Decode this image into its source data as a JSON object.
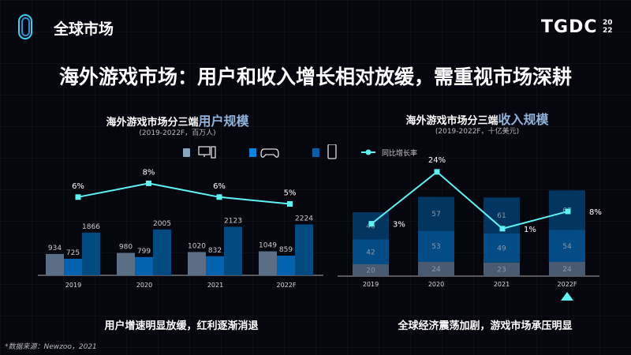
{
  "header": {
    "brand": "全球市场",
    "logo_text": "TGDC",
    "logo_year_top": "20",
    "logo_year_bottom": "22"
  },
  "title": "海外游戏市场：用户和收入增长相对放缓，需重视市场深耕",
  "legend": {
    "items": [
      {
        "icon": "pc-icon",
        "color": "#8aa5c0"
      },
      {
        "icon": "gamepad-icon",
        "color": "#0a84e0"
      },
      {
        "icon": "mobile-icon",
        "color": "#0b5fa6"
      }
    ],
    "line_label": "同比增长率",
    "line_color": "#5ef2f2"
  },
  "chart_data": [
    {
      "type": "bar",
      "title_prefix": "海外游戏市场分三端",
      "title_highlight": "用户规模",
      "subtitle": "(2019-2022F，百万人)",
      "categories": [
        "2019",
        "2020",
        "2021",
        "2022F"
      ],
      "series": [
        {
          "name": "PC",
          "values": [
            934,
            980,
            1020,
            1049
          ],
          "color": "#5a6e86"
        },
        {
          "name": "Console",
          "values": [
            725,
            799,
            832,
            859
          ],
          "color": "#0562ae"
        },
        {
          "name": "Mobile",
          "values": [
            1866,
            2005,
            2123,
            2224
          ],
          "color": "#024a80"
        }
      ],
      "growth": {
        "name": "同比增长率",
        "values": [
          6,
          8,
          6,
          5
        ],
        "labels": [
          "6%",
          "8%",
          "6%",
          "5%"
        ]
      },
      "conclusion": "用户增速明显放缓，红利逐渐消退"
    },
    {
      "type": "bar",
      "stacked": true,
      "title_prefix": "海外游戏市场分三端",
      "title_highlight": "收入规模",
      "subtitle": "(2019-2022F，十亿美元)",
      "categories": [
        "2019",
        "2020",
        "2021",
        "2022F"
      ],
      "series": [
        {
          "name": "PC",
          "values": [
            20,
            24,
            23,
            24
          ],
          "color": "#4a5a70"
        },
        {
          "name": "Console",
          "values": [
            42,
            53,
            49,
            54
          ],
          "color": "#034c86"
        },
        {
          "name": "Mobile",
          "values": [
            46,
            57,
            61,
            67
          ],
          "color": "#02355f"
        }
      ],
      "growth": {
        "name": "同比增长率",
        "values": [
          3,
          24,
          1,
          8
        ],
        "labels": [
          "3%",
          "24%",
          "1%",
          "8%"
        ]
      },
      "conclusion": "全球经济震荡加剧，游戏市场承压明显"
    }
  ],
  "source": "*数据来源：Newzoo，2021"
}
